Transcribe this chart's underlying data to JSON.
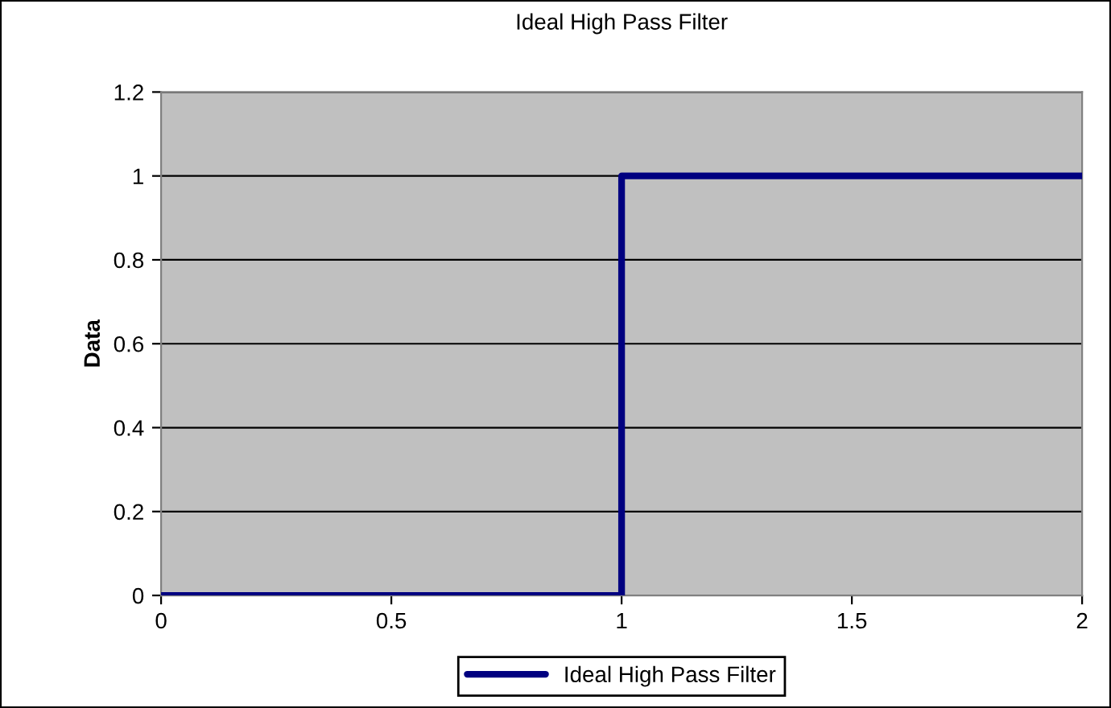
{
  "chart_data": {
    "type": "line",
    "title": "Ideal High Pass Filter",
    "ylabel": "Data",
    "x": [
      0,
      1,
      1,
      2
    ],
    "series": [
      {
        "name": "Ideal High Pass Filter",
        "color": "#000080",
        "values": [
          0,
          0,
          1,
          1
        ]
      }
    ],
    "xlim": [
      0,
      2
    ],
    "xticks": [
      0,
      0.5,
      1,
      1.5,
      2
    ],
    "ylim": [
      0,
      1.2
    ],
    "yticks": [
      0,
      0.2,
      0.4,
      0.6,
      0.8,
      1,
      1.2
    ],
    "grid": "y",
    "legend": "bottom",
    "marker": "none",
    "line_style": "solid"
  }
}
